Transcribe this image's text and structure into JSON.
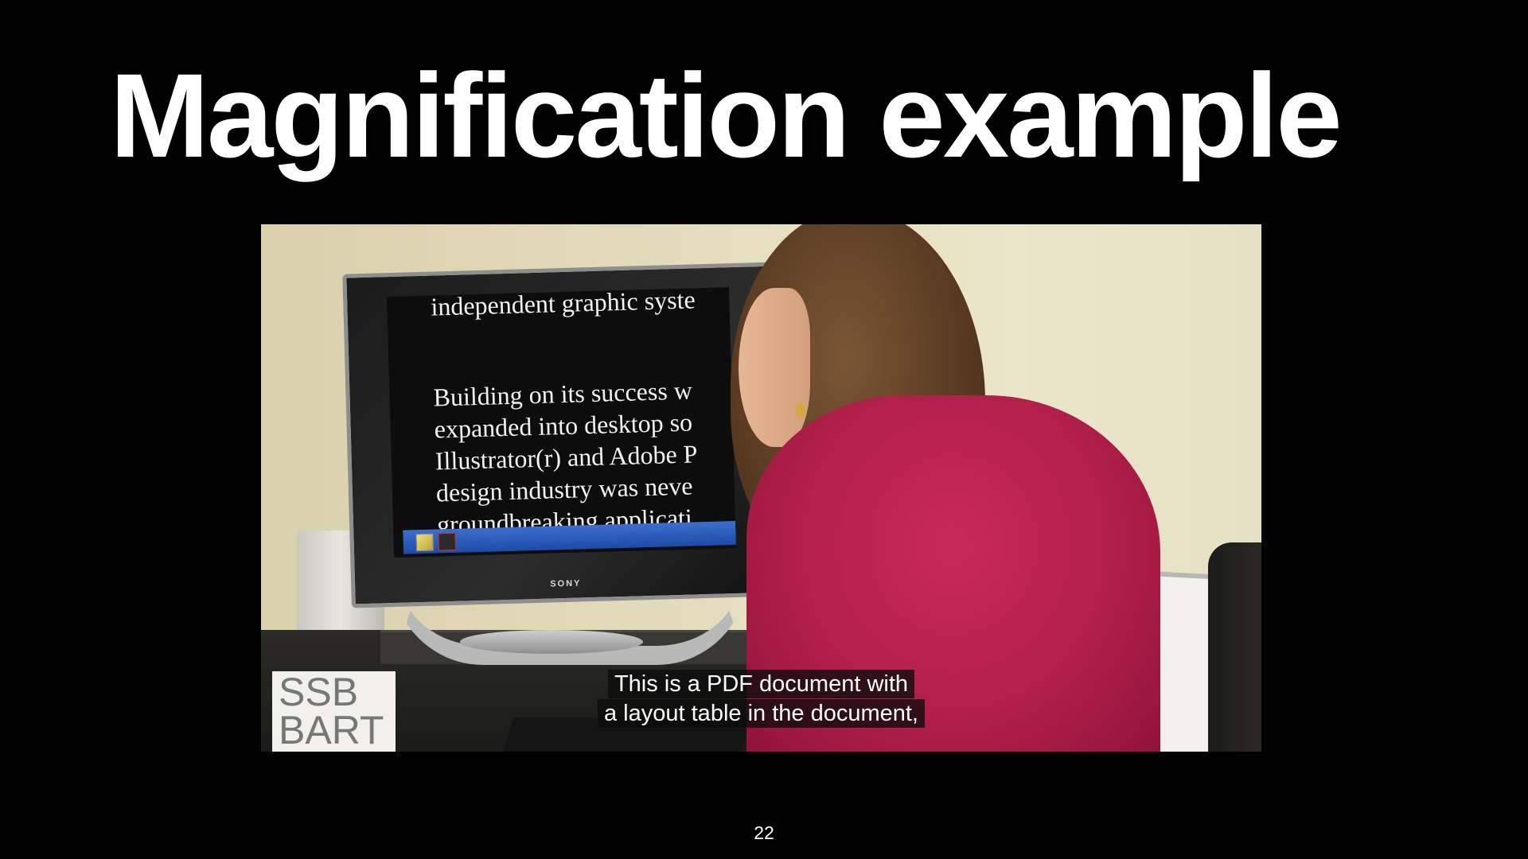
{
  "slide": {
    "title": "Magnification example",
    "page_number": "22"
  },
  "video": {
    "screen_text": {
      "top_line": "independent graphic syste",
      "lines": [
        "Building on its success w",
        "expanded into desktop so",
        "Illustrator(r) and Adobe P",
        "design industry was neve",
        "groundbreaking applicati"
      ]
    },
    "monitor_brand": "SONY",
    "logo_lines": [
      "SSB",
      "BART"
    ],
    "captions": [
      "This is a PDF document with",
      "a layout table in the document,"
    ]
  },
  "colors": {
    "background": "#000000",
    "title": "#ffffff",
    "shirt": "#b01f4a"
  },
  "icons": [
    "pdf-icon",
    "app-icon"
  ]
}
